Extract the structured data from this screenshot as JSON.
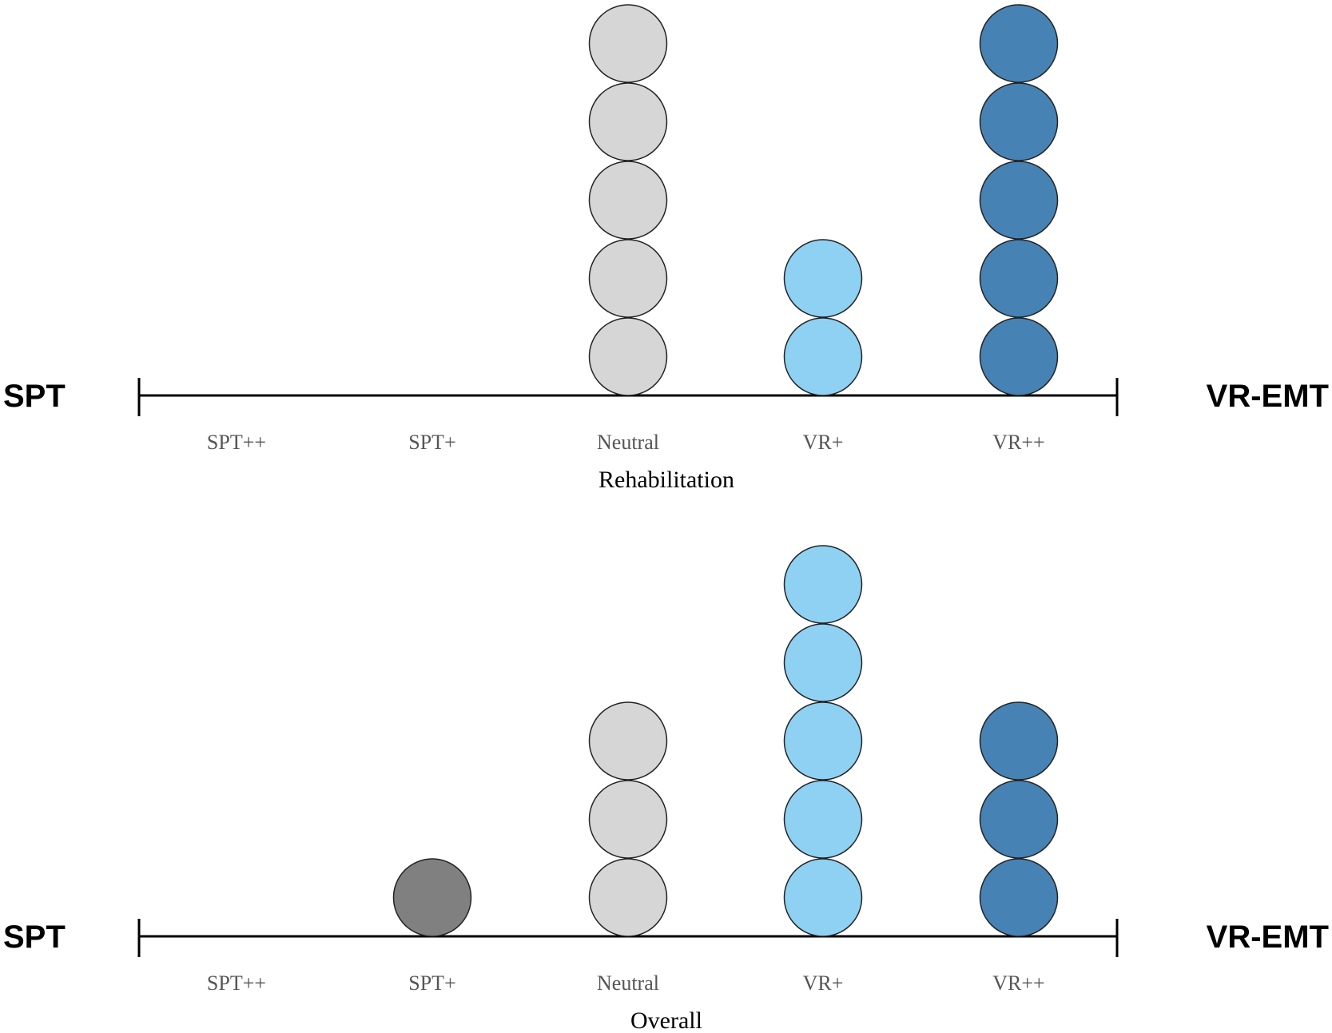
{
  "chart_data": [
    {
      "type": "dot",
      "title": "Rehabilitation",
      "left_label": "SPT",
      "right_label": "VR-EMT",
      "categories": [
        "SPT++",
        "SPT+",
        "Neutral",
        "VR+",
        "VR++"
      ],
      "values": [
        0,
        0,
        5,
        2,
        5
      ],
      "colors": [
        "#595959",
        "#808080",
        "#d6d6d6",
        "#8ed1f3",
        "#4682b4"
      ]
    },
    {
      "type": "dot",
      "title": "Overall",
      "left_label": "SPT",
      "right_label": "VR-EMT",
      "categories": [
        "SPT++",
        "SPT+",
        "Neutral",
        "VR+",
        "VR++"
      ],
      "values": [
        0,
        1,
        3,
        5,
        3
      ],
      "colors": [
        "#595959",
        "#808080",
        "#d6d6d6",
        "#8ed1f3",
        "#4682b4"
      ]
    }
  ]
}
